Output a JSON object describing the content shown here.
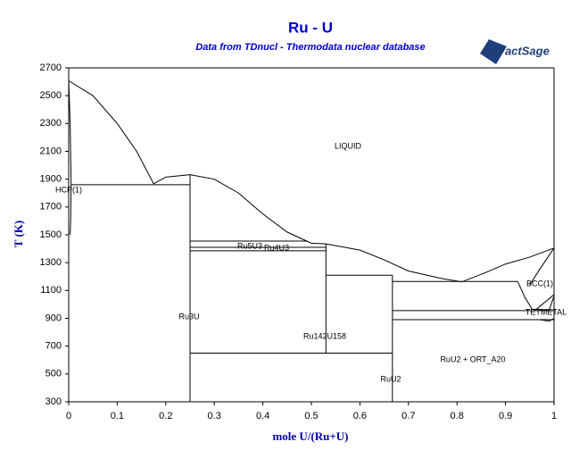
{
  "chart_data": {
    "type": "phase_diagram",
    "title": "Ru - U",
    "subtitle": "Data from TDnucl - Thermodata nuclear database",
    "logo": "FactSage",
    "x_label": "mole U/(Ru+U)",
    "y_label": "T (K)",
    "xlim": [
      0,
      1
    ],
    "ylim": [
      300,
      2700
    ],
    "xticks": [
      0,
      0.1,
      0.2,
      0.3,
      0.4,
      0.5,
      0.6,
      0.7,
      0.8,
      0.9,
      1
    ],
    "yticks": [
      300,
      500,
      700,
      900,
      1100,
      1300,
      1500,
      1700,
      1900,
      2100,
      2300,
      2500,
      2700
    ],
    "color": "#000000",
    "lines": [
      {
        "x": [
          0,
          0.05,
          0.1,
          0.14,
          0.175,
          0.2,
          0.25,
          0.3,
          0.35,
          0.4,
          0.45,
          0.5,
          0.53,
          0.6,
          0.65,
          0.7,
          0.77,
          0.81,
          0.86,
          0.9,
          0.95,
          1
        ],
        "y": [
          2607,
          2500,
          2300,
          2100,
          1867,
          1915,
          1932,
          1900,
          1800,
          1650,
          1520,
          1440,
          1435,
          1390,
          1320,
          1240,
          1185,
          1162,
          1230,
          1290,
          1340,
          1405
        ]
      },
      {
        "x": [
          0,
          0.003,
          0.005,
          0.004,
          0.003
        ],
        "y": [
          2607,
          2300,
          1860,
          1600,
          1500
        ]
      },
      {
        "x": [
          0.005,
          0.25
        ],
        "y": [
          1860,
          1860
        ]
      },
      {
        "x": [
          0.25,
          0.25
        ],
        "y": [
          300,
          1932
        ]
      },
      {
        "x": [
          0.25,
          0.49
        ],
        "y": [
          1455,
          1455
        ]
      },
      {
        "x": [
          0.25,
          0.53
        ],
        "y": [
          1410,
          1410
        ]
      },
      {
        "x": [
          0.25,
          0.53
        ],
        "y": [
          1385,
          1385
        ]
      },
      {
        "x": [
          0.53,
          0.53
        ],
        "y": [
          650,
          1435
        ]
      },
      {
        "x": [
          0.25,
          0.667
        ],
        "y": [
          650,
          650
        ]
      },
      {
        "x": [
          0.53,
          0.667
        ],
        "y": [
          1210,
          1210
        ]
      },
      {
        "x": [
          0.667,
          0.667
        ],
        "y": [
          300,
          1210
        ]
      },
      {
        "x": [
          0.667,
          0.925
        ],
        "y": [
          1165,
          1165
        ]
      },
      {
        "x": [
          0.667,
          1
        ],
        "y": [
          955,
          955
        ]
      },
      {
        "x": [
          0.667,
          1
        ],
        "y": [
          890,
          890
        ]
      },
      {
        "x": [
          0.925,
          0.94,
          0.955,
          0.99,
          1
        ],
        "y": [
          1165,
          1050,
          965,
          960,
          1060
        ]
      },
      {
        "x": [
          1,
          0.97,
          0.95
        ],
        "y": [
          1405,
          1250,
          1140
        ]
      },
      {
        "x": [
          0.96,
          1
        ],
        "y": [
          955,
          1070
        ]
      },
      {
        "x": [
          0.97,
          0.99,
          1
        ],
        "y": [
          890,
          880,
          900
        ]
      }
    ],
    "labels": [
      "LIQUID",
      "HCP(1)",
      "Ru3U",
      "Ru5U3",
      "Ru4U3",
      "Ru142U158",
      "RuU2 + ORT_A20",
      "RuU2",
      "BCC(1)",
      "TETMETAL"
    ]
  }
}
